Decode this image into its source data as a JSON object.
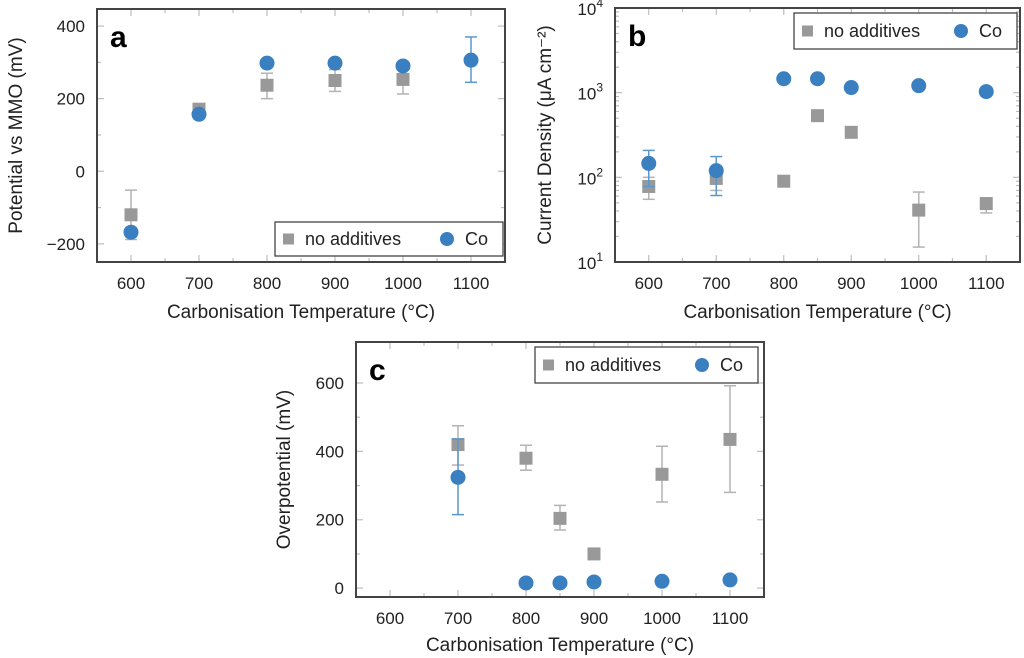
{
  "colors": {
    "no_additives": "#999999",
    "co": "#3a7fc0",
    "no_additives_error": "#b3b3b3",
    "co_error": "#5b97cf",
    "axis": "#444444",
    "tick": "#bdbdbd"
  },
  "chart_data": [
    {
      "id": "a",
      "panel_label": "a",
      "type": "scatter",
      "xlabel": "Carbonisation Temperature (°C)",
      "ylabel": "Potential vs  MMO (mV)",
      "xlim": [
        550,
        1150
      ],
      "ylim": [
        -250,
        447
      ],
      "yscale": "linear",
      "xticks": [
        600,
        700,
        800,
        900,
        1000,
        1100
      ],
      "xtick_labels": [
        "600",
        "700",
        "800",
        "900",
        "1000",
        "1100"
      ],
      "yticks": [
        -200,
        0,
        200,
        400
      ],
      "ytick_labels": [
        "−200",
        "0",
        "200",
        "400"
      ],
      "yminor": [
        -100,
        100,
        300
      ],
      "legend": {
        "position": "bottom-right",
        "entries": [
          "no additives",
          "Co"
        ]
      },
      "series": [
        {
          "name": "no additives",
          "marker": "square",
          "points": [
            {
              "x": 600,
              "y": -120,
              "err_low": -188,
              "err_high": -52
            },
            {
              "x": 700,
              "y": 171,
              "err_low": 165,
              "err_high": 177
            },
            {
              "x": 800,
              "y": 237,
              "err_low": 200,
              "err_high": 270
            },
            {
              "x": 900,
              "y": 250,
              "err_low": 220,
              "err_high": 280
            },
            {
              "x": 1000,
              "y": 253,
              "err_low": 213,
              "err_high": 285
            }
          ]
        },
        {
          "name": "Co",
          "marker": "circle",
          "points": [
            {
              "x": 600,
              "y": -168,
              "err_low": -180,
              "err_high": -156
            },
            {
              "x": 700,
              "y": 157,
              "err_low": 150,
              "err_high": 164
            },
            {
              "x": 800,
              "y": 298,
              "err_low": 298,
              "err_high": 298
            },
            {
              "x": 900,
              "y": 298,
              "err_low": 292,
              "err_high": 304
            },
            {
              "x": 1000,
              "y": 290,
              "err_low": 284,
              "err_high": 296
            },
            {
              "x": 1100,
              "y": 306,
              "err_low": 245,
              "err_high": 370
            }
          ]
        }
      ]
    },
    {
      "id": "b",
      "panel_label": "b",
      "type": "scatter",
      "xlabel": "Carbonisation Temperature (°C)",
      "ylabel": "Current Density (μA cm⁻²)",
      "xlim": [
        550,
        1150
      ],
      "ylim": [
        10,
        10000
      ],
      "yscale": "log",
      "xticks": [
        600,
        700,
        800,
        900,
        1000,
        1100
      ],
      "xtick_labels": [
        "600",
        "700",
        "800",
        "900",
        "1000",
        "1100"
      ],
      "yticks": [
        10,
        100,
        1000,
        10000
      ],
      "ytick_labels": [
        {
          "base": "10",
          "exp": "1"
        },
        {
          "base": "10",
          "exp": "2"
        },
        {
          "base": "10",
          "exp": "3"
        },
        {
          "base": "10",
          "exp": "4"
        }
      ],
      "legend": {
        "position": "top-right",
        "entries": [
          "no additives",
          "Co"
        ]
      },
      "series": [
        {
          "name": "no additives",
          "marker": "square",
          "points": [
            {
              "x": 600,
              "y": 78,
              "err_low": 55,
              "err_high": 100
            },
            {
              "x": 700,
              "y": 97,
              "err_low": 70,
              "err_high": 125
            },
            {
              "x": 800,
              "y": 90,
              "err_low": 90,
              "err_high": 90
            },
            {
              "x": 850,
              "y": 535,
              "err_low": 535,
              "err_high": 535
            },
            {
              "x": 900,
              "y": 340,
              "err_low": 340,
              "err_high": 340
            },
            {
              "x": 1000,
              "y": 41,
              "err_low": 15,
              "err_high": 67
            },
            {
              "x": 1100,
              "y": 49,
              "err_low": 38,
              "err_high": 57
            }
          ]
        },
        {
          "name": "Co",
          "marker": "circle",
          "points": [
            {
              "x": 600,
              "y": 146,
              "err_low": 78,
              "err_high": 208
            },
            {
              "x": 700,
              "y": 120,
              "err_low": 61,
              "err_high": 176
            },
            {
              "x": 800,
              "y": 1460,
              "err_low": 1460,
              "err_high": 1460
            },
            {
              "x": 850,
              "y": 1460,
              "err_low": 1460,
              "err_high": 1460
            },
            {
              "x": 900,
              "y": 1150,
              "err_low": 1150,
              "err_high": 1150
            },
            {
              "x": 1000,
              "y": 1210,
              "err_low": 1150,
              "err_high": 1270
            },
            {
              "x": 1100,
              "y": 1030,
              "err_low": 1030,
              "err_high": 1030
            }
          ]
        }
      ]
    },
    {
      "id": "c",
      "panel_label": "c",
      "type": "scatter",
      "xlabel": "Carbonisation Temperature (°C)",
      "ylabel": "Overpotential (mV)",
      "xlim": [
        550,
        1150
      ],
      "ylim": [
        -26,
        720
      ],
      "yscale": "linear",
      "xticks": [
        600,
        700,
        800,
        900,
        1000,
        1100
      ],
      "xtick_labels": [
        "600",
        "700",
        "800",
        "900",
        "1000",
        "1100"
      ],
      "yticks": [
        0,
        200,
        400,
        600
      ],
      "ytick_labels": [
        "0",
        "200",
        "400",
        "600"
      ],
      "yminor": [
        100,
        300,
        500
      ],
      "legend": {
        "position": "top-right",
        "entries": [
          "no additives",
          "Co"
        ]
      },
      "series": [
        {
          "name": "no additives",
          "marker": "square",
          "points": [
            {
              "x": 700,
              "y": 420,
              "err_low": 360,
              "err_high": 475
            },
            {
              "x": 800,
              "y": 380,
              "err_low": 345,
              "err_high": 418
            },
            {
              "x": 850,
              "y": 204,
              "err_low": 170,
              "err_high": 242
            },
            {
              "x": 900,
              "y": 100,
              "err_low": 100,
              "err_high": 100
            },
            {
              "x": 1000,
              "y": 333,
              "err_low": 252,
              "err_high": 415
            },
            {
              "x": 1100,
              "y": 435,
              "err_low": 280,
              "err_high": 592
            }
          ]
        },
        {
          "name": "Co",
          "marker": "circle",
          "points": [
            {
              "x": 700,
              "y": 324,
              "err_low": 215,
              "err_high": 436
            },
            {
              "x": 800,
              "y": 15,
              "err_low": 15,
              "err_high": 15
            },
            {
              "x": 850,
              "y": 15,
              "err_low": 15,
              "err_high": 15
            },
            {
              "x": 900,
              "y": 18,
              "err_low": 18,
              "err_high": 18
            },
            {
              "x": 1000,
              "y": 20,
              "err_low": 20,
              "err_high": 20
            },
            {
              "x": 1100,
              "y": 24,
              "err_low": 24,
              "err_high": 24
            }
          ]
        }
      ]
    }
  ]
}
